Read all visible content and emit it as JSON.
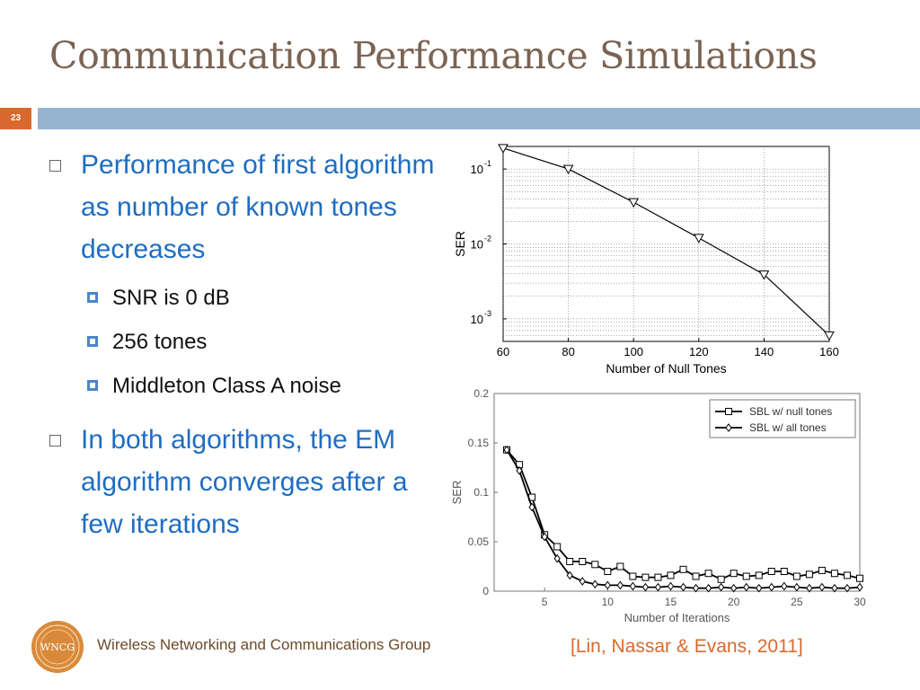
{
  "slide": {
    "title": "Communication Performance Simulations",
    "number": "23"
  },
  "bullets": [
    {
      "text": "Performance of first algorithm as number of known tones decreases",
      "sub": [
        "SNR is 0 dB",
        "256 tones",
        "Middleton Class A noise"
      ]
    },
    {
      "text": "In both algorithms, the EM algorithm converges after a few iterations",
      "sub": []
    }
  ],
  "footer": {
    "logo_text": "WNCG",
    "group": "Wireless Networking and Communications Group",
    "citation": "[Lin, Nassar & Evans, 2011]"
  },
  "colors": {
    "title": "#7a6353",
    "accent_orange": "#d9692e",
    "rule_blue": "#95b3d0",
    "bullet_blue": "#1f6dc1"
  },
  "chart_data": [
    {
      "type": "line",
      "xlabel": "Number of Null Tones",
      "ylabel": "SER",
      "y_scale": "log",
      "xlim": [
        60,
        160
      ],
      "ylim": [
        0.0005,
        0.2
      ],
      "x_ticks": [
        "60",
        "80",
        "100",
        "120",
        "140",
        "160"
      ],
      "y_ticks": [
        {
          "base": "10",
          "exp": "-1",
          "value": 0.1
        },
        {
          "base": "10",
          "exp": "-2",
          "value": 0.01
        },
        {
          "base": "10",
          "exp": "-3",
          "value": 0.001
        }
      ],
      "grid": true,
      "series": [
        {
          "x": [
            60,
            80,
            100,
            120,
            140,
            160
          ],
          "values": [
            0.19,
            0.1,
            0.036,
            0.012,
            0.0039,
            0.0006
          ],
          "marker": "triangle-down"
        }
      ]
    },
    {
      "type": "line",
      "xlabel": "Number of Iterations",
      "ylabel": "SER",
      "xlim": [
        1,
        30
      ],
      "ylim": [
        0,
        0.2
      ],
      "x_ticks": [
        "5",
        "10",
        "15",
        "20",
        "25",
        "30"
      ],
      "y_ticks": [
        "0",
        "0.05",
        "0.1",
        "0.15",
        "0.2"
      ],
      "legend_position": "top-right",
      "grid": false,
      "series": [
        {
          "name": "SBL w/ null tones",
          "marker": "square",
          "x": [
            2,
            3,
            4,
            5,
            6,
            7,
            8,
            9,
            10,
            11,
            12,
            13,
            14,
            15,
            16,
            17,
            18,
            19,
            20,
            21,
            22,
            23,
            24,
            25,
            26,
            27,
            28,
            29,
            30
          ],
          "values": [
            0.143,
            0.128,
            0.095,
            0.057,
            0.045,
            0.03,
            0.03,
            0.027,
            0.02,
            0.025,
            0.015,
            0.014,
            0.014,
            0.016,
            0.022,
            0.015,
            0.018,
            0.012,
            0.018,
            0.015,
            0.016,
            0.02,
            0.02,
            0.015,
            0.017,
            0.021,
            0.018,
            0.016,
            0.013
          ]
        },
        {
          "name": "SBL w/ all tones",
          "marker": "diamond",
          "x": [
            2,
            3,
            4,
            5,
            6,
            7,
            8,
            9,
            10,
            11,
            12,
            13,
            14,
            15,
            16,
            17,
            18,
            19,
            20,
            21,
            22,
            23,
            24,
            25,
            26,
            27,
            28,
            29,
            30
          ],
          "values": [
            0.143,
            0.122,
            0.085,
            0.055,
            0.033,
            0.016,
            0.01,
            0.007,
            0.006,
            0.006,
            0.005,
            0.004,
            0.004,
            0.005,
            0.004,
            0.003,
            0.003,
            0.004,
            0.003,
            0.004,
            0.003,
            0.004,
            0.005,
            0.004,
            0.003,
            0.004,
            0.003,
            0.003,
            0.004
          ]
        }
      ]
    }
  ]
}
